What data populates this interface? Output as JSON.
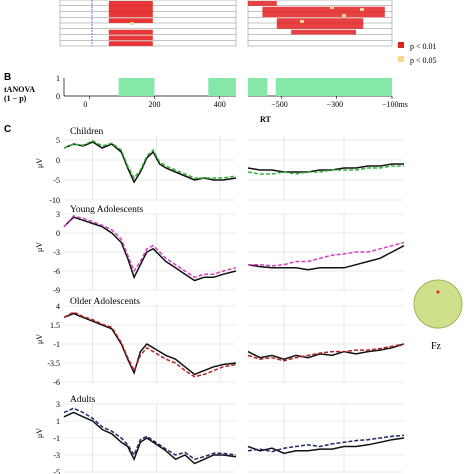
{
  "figure": {
    "panel_b_label": "B",
    "panel_c_label": "C",
    "tanova_label_line1": "tANOVA",
    "tanova_label_line2": "(1 − p)",
    "rt_label": "RT",
    "legend": [
      {
        "label": "p < 0.01",
        "color": "#e32020"
      },
      {
        "label": "p < 0.05",
        "color": "#f5d78a"
      }
    ],
    "electrode_label": "Fz",
    "colors": {
      "tanova_fill": "#86e8a8",
      "scalp": "#cfe08a",
      "children_a": "#111111",
      "children_b": "#33b233",
      "young_a": "#111111",
      "young_b": "#d23fbf",
      "older_a": "#111111",
      "older_b": "#b22222",
      "adults_a": "#111111",
      "adults_b": "#1c2a6b"
    }
  },
  "chart_data": [
    {
      "type": "heatmap",
      "title": "",
      "rows": 8,
      "cells_note_significance": "p < 0.01 (red), p < 0.05 (yellow)",
      "stim_blocks": [
        [
          [
            5,
            30
          ],
          [
            0,
            3
          ]
        ],
        [
          [
            5,
            30
          ],
          [
            3,
            4
          ]
        ],
        [
          [
            5,
            30
          ],
          [
            5,
            6
          ]
        ],
        [
          [
            5,
            30
          ],
          [
            6,
            7
          ]
        ],
        [
          [
            5,
            30
          ],
          [
            7,
            8
          ]
        ]
      ],
      "resp_blocks": [
        [
          [
            0,
            20
          ],
          [
            0,
            1
          ]
        ],
        [
          [
            10,
            95
          ],
          [
            1,
            3
          ]
        ],
        [
          [
            20,
            80
          ],
          [
            3,
            5
          ]
        ],
        [
          [
            30,
            75
          ],
          [
            5,
            6
          ]
        ]
      ]
    },
    {
      "type": "area",
      "title": "tANOVA (1 − p)",
      "stim_axis": {
        "ticks": [
          0,
          200,
          400
        ],
        "range": [
          -90,
          450
        ]
      },
      "resp_axis": {
        "ticks": [
          -500,
          -300,
          -100
        ],
        "tick_labels": [
          "−500",
          "−300",
          "−100ms"
        ],
        "range": [
          -620,
          -100
        ]
      },
      "y_ticks": [
        0,
        1
      ],
      "stim_segments": [
        [
          90,
          200
        ],
        [
          365,
          450
        ]
      ],
      "resp_segments": [
        [
          -620,
          -550
        ],
        [
          -520,
          -100
        ]
      ]
    },
    {
      "type": "line",
      "group": "Children",
      "ylabel": "μV",
      "yticks": [
        5,
        0,
        -5,
        -10
      ],
      "ylim": [
        -10,
        6
      ],
      "stim_x": [
        -90,
        -60,
        -30,
        0,
        30,
        60,
        90,
        110,
        130,
        150,
        170,
        190,
        210,
        230,
        260,
        290,
        320,
        350,
        380,
        410,
        450
      ],
      "series": [
        {
          "name": "",
          "color": "#111111",
          "values": [
            3,
            4,
            3.5,
            4.5,
            3,
            4,
            2,
            -2,
            -5.5,
            -3,
            0.5,
            2,
            -1,
            -2,
            -3,
            -4,
            -5,
            -4.5,
            -5,
            -5,
            -4.5
          ]
        },
        {
          "name": "",
          "color": "#33b233",
          "values": [
            3,
            4,
            3.7,
            4.8,
            3.5,
            4.2,
            2.5,
            -1.5,
            -4.5,
            -2.5,
            1,
            2.5,
            -0.5,
            -1.5,
            -2.5,
            -3.5,
            -4.5,
            -4.5,
            -4.5,
            -4.5,
            -4
          ]
        }
      ],
      "resp_x": [
        -620,
        -580,
        -540,
        -500,
        -460,
        -420,
        -380,
        -340,
        -300,
        -260,
        -220,
        -180,
        -140,
        -100
      ],
      "resp_series": [
        {
          "name": "",
          "color": "#111111",
          "values": [
            -2,
            -2.5,
            -2.5,
            -3,
            -3,
            -3,
            -2.5,
            -2.5,
            -2,
            -2,
            -1.5,
            -1.5,
            -1,
            -1
          ]
        },
        {
          "name": "",
          "color": "#33b233",
          "values": [
            -3,
            -3.5,
            -3.5,
            -3,
            -3.5,
            -3,
            -3,
            -2.5,
            -2.5,
            -2.5,
            -2,
            -2,
            -1.5,
            -1.5
          ]
        }
      ]
    },
    {
      "type": "line",
      "group": "Young Adolescents",
      "ylabel": "μV",
      "yticks": [
        3,
        0,
        -3,
        -6,
        -9
      ],
      "ylim": [
        -9,
        3
      ],
      "stim_x": [
        -90,
        -60,
        -30,
        0,
        30,
        60,
        90,
        110,
        130,
        150,
        170,
        190,
        210,
        230,
        260,
        290,
        320,
        350,
        380,
        410,
        450
      ],
      "series": [
        {
          "name": "",
          "color": "#111111",
          "values": [
            1,
            2.5,
            2,
            1.5,
            1,
            0,
            -1.5,
            -4,
            -7,
            -5,
            -3,
            -2.5,
            -3.5,
            -4.5,
            -5.5,
            -6.5,
            -7.5,
            -7,
            -7,
            -6.5,
            -6
          ]
        },
        {
          "name": "",
          "color": "#d23fbf",
          "values": [
            1,
            2.7,
            2.3,
            1.8,
            1.2,
            0.5,
            -1,
            -3.5,
            -6,
            -4.5,
            -2.5,
            -2,
            -3,
            -4,
            -5,
            -6,
            -7,
            -6.5,
            -6.5,
            -6,
            -5.5
          ]
        }
      ],
      "resp_x": [
        -620,
        -580,
        -540,
        -500,
        -460,
        -420,
        -380,
        -340,
        -300,
        -260,
        -220,
        -180,
        -140,
        -100
      ],
      "resp_series": [
        {
          "name": "",
          "color": "#111111",
          "values": [
            -5,
            -5.3,
            -5.5,
            -5.5,
            -5.5,
            -5.8,
            -5.5,
            -5.5,
            -5.5,
            -5,
            -4.5,
            -4,
            -3,
            -2
          ]
        },
        {
          "name": "",
          "color": "#d23fbf",
          "values": [
            -5,
            -5,
            -5.2,
            -5,
            -4.5,
            -4.5,
            -4,
            -3.5,
            -3.3,
            -3,
            -3,
            -2.5,
            -2,
            -1.5
          ]
        }
      ]
    },
    {
      "type": "line",
      "group": "Older Adolescents",
      "ylabel": "μV",
      "yticks": [
        4,
        1.5,
        -1,
        -3.5,
        -6
      ],
      "ylim": [
        -6,
        4
      ],
      "stim_x": [
        -90,
        -60,
        -30,
        0,
        30,
        60,
        90,
        110,
        130,
        150,
        170,
        190,
        210,
        230,
        260,
        290,
        320,
        350,
        380,
        410,
        450
      ],
      "series": [
        {
          "name": "",
          "color": "#111111",
          "values": [
            2.5,
            3,
            2.5,
            2,
            1.5,
            1,
            -1,
            -3,
            -4.8,
            -2,
            -1,
            -1.5,
            -2,
            -2.5,
            -3,
            -4,
            -5,
            -4.5,
            -4,
            -3.7,
            -3.5
          ]
        },
        {
          "name": "",
          "color": "#b22222",
          "values": [
            2.5,
            3.2,
            2.6,
            2.2,
            1.6,
            1.2,
            -0.8,
            -2.8,
            -4.5,
            -2.5,
            -1.5,
            -2,
            -2.5,
            -3,
            -3.5,
            -4.5,
            -5.3,
            -5,
            -4.5,
            -4,
            -3.7
          ]
        }
      ],
      "resp_x": [
        -620,
        -580,
        -540,
        -500,
        -460,
        -420,
        -380,
        -340,
        -300,
        -260,
        -220,
        -180,
        -140,
        -100
      ],
      "resp_series": [
        {
          "name": "",
          "color": "#111111",
          "values": [
            -2,
            -2.8,
            -2.5,
            -3,
            -2.5,
            -2.8,
            -2.3,
            -2.5,
            -2,
            -2.3,
            -2,
            -1.8,
            -1.5,
            -1
          ]
        },
        {
          "name": "",
          "color": "#b22222",
          "values": [
            -2.5,
            -3,
            -2.8,
            -3.2,
            -2.8,
            -2.5,
            -2.2,
            -2,
            -2,
            -1.8,
            -1.8,
            -1.6,
            -1.3,
            -1
          ]
        }
      ]
    },
    {
      "type": "line",
      "group": "Adults",
      "ylabel": "μV",
      "yticks": [
        3,
        1,
        -1,
        -3,
        -5
      ],
      "ylim": [
        -5,
        3
      ],
      "stim_x": [
        -90,
        -60,
        -30,
        0,
        30,
        60,
        90,
        110,
        130,
        150,
        170,
        190,
        210,
        230,
        260,
        290,
        320,
        350,
        380,
        410,
        450
      ],
      "series": [
        {
          "name": "",
          "color": "#111111",
          "values": [
            1.5,
            2,
            1.5,
            1,
            0,
            -0.5,
            -1.5,
            -2,
            -3.5,
            -1.5,
            -1,
            -1.5,
            -2,
            -2.5,
            -3.5,
            -3,
            -4,
            -3.5,
            -3,
            -3,
            -3.2
          ]
        },
        {
          "name": "",
          "color": "#1c2a6b",
          "values": [
            2,
            2.5,
            2,
            1.3,
            0.3,
            -0.2,
            -1,
            -1.8,
            -3,
            -1.2,
            -0.8,
            -1.3,
            -1.8,
            -2.3,
            -3,
            -2.7,
            -3.5,
            -3.2,
            -2.8,
            -2.8,
            -3
          ]
        }
      ],
      "resp_x": [
        -620,
        -580,
        -540,
        -500,
        -460,
        -420,
        -380,
        -340,
        -300,
        -260,
        -220,
        -180,
        -140,
        -100
      ],
      "resp_series": [
        {
          "name": "",
          "color": "#111111",
          "values": [
            -2,
            -2.5,
            -2.2,
            -2.8,
            -2.5,
            -2.5,
            -2.3,
            -2.3,
            -2,
            -2,
            -1.8,
            -1.5,
            -1.2,
            -1
          ]
        },
        {
          "name": "",
          "color": "#1c2a6b",
          "values": [
            -2.5,
            -2.3,
            -2.6,
            -2.2,
            -2,
            -1.8,
            -2,
            -1.7,
            -1.5,
            -1.3,
            -1.2,
            -1,
            -0.8,
            -0.7
          ]
        }
      ]
    }
  ]
}
